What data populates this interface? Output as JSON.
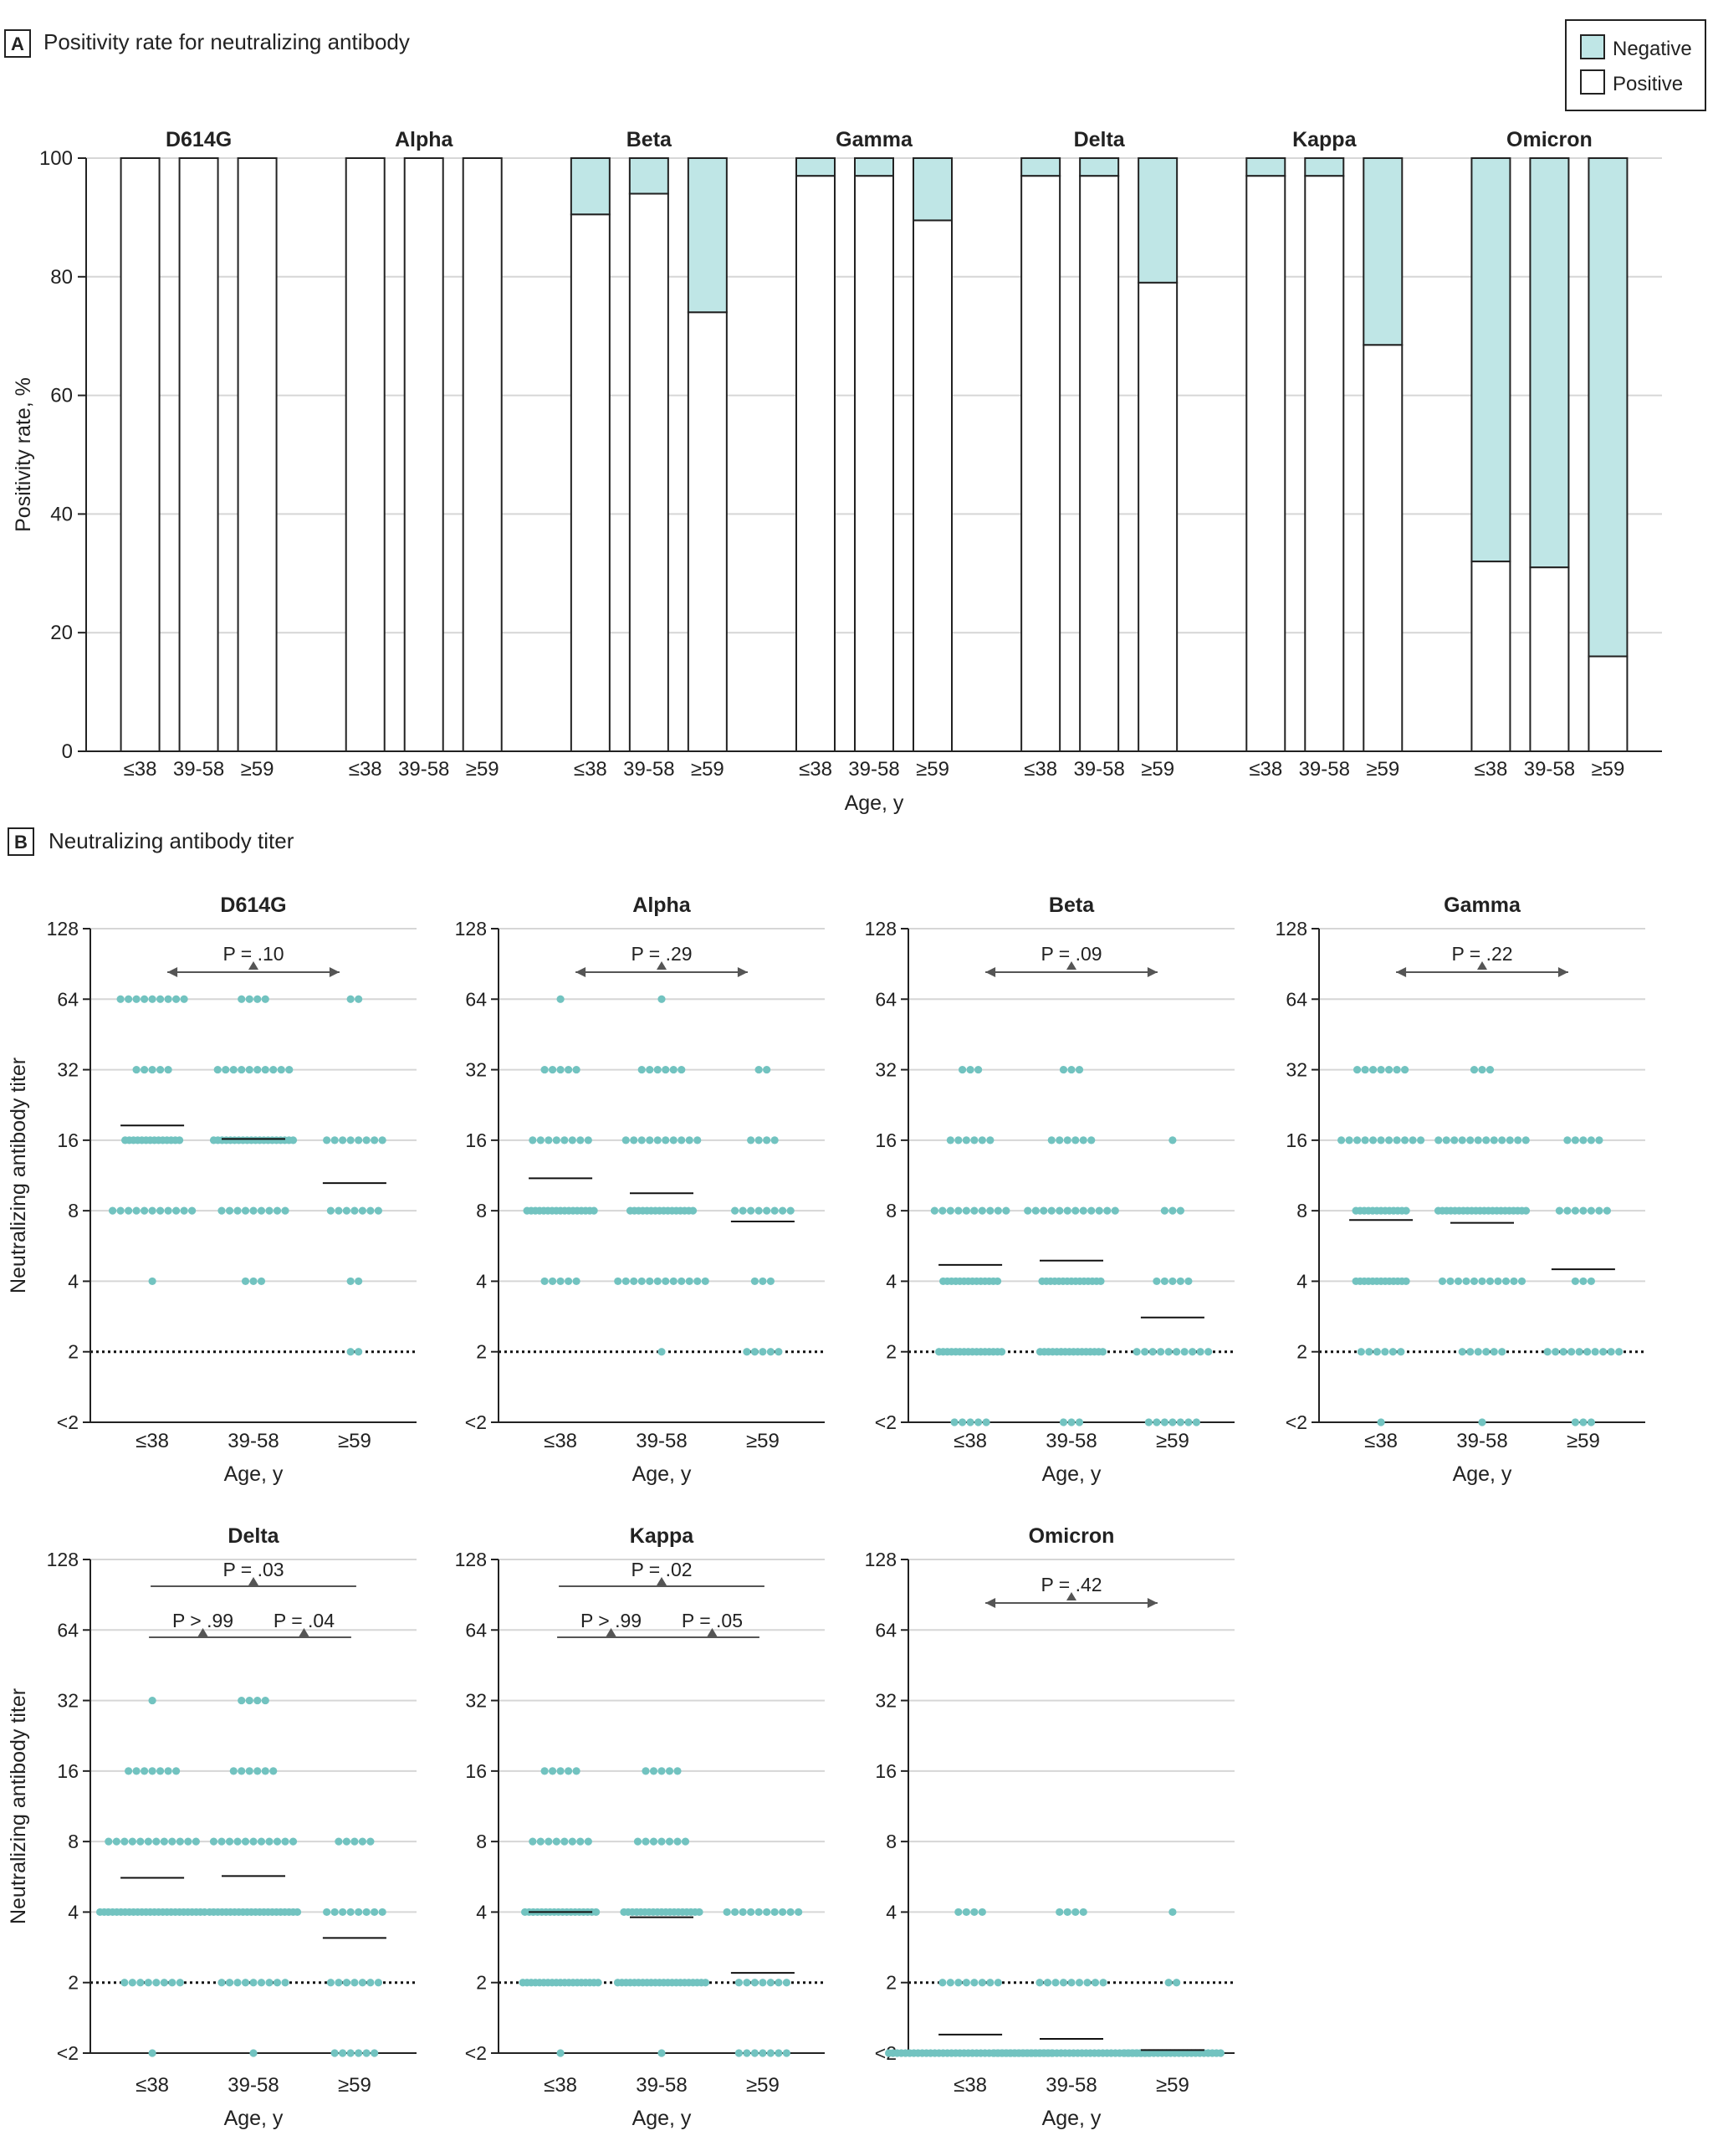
{
  "colors": {
    "negative": "#bfe6e6",
    "dot": "#72c3c0",
    "stroke": "#222222",
    "grid": "#d6d6d6",
    "text": "#222222"
  },
  "panelA": {
    "letter": "A",
    "title": "Positivity rate for neutralizing antibody",
    "legend": {
      "negative": "Negative",
      "positive": "Positive"
    }
  },
  "panelB": {
    "letter": "B",
    "title": "Neutralizing antibody titer"
  },
  "chart_data": [
    {
      "type": "bar",
      "stacked": true,
      "title": "Positivity rate for neutralizing antibody",
      "xlabel": "Age, y",
      "ylabel": "Positivity rate, %",
      "ylim": [
        0,
        100
      ],
      "yticks": [
        "0",
        "20",
        "40",
        "60",
        "80",
        "100"
      ],
      "categories": [
        "≤38",
        "39-58",
        "≥59"
      ],
      "legend": [
        "Negative",
        "Positive"
      ],
      "groups": [
        {
          "name": "D614G",
          "positive": [
            100,
            100,
            100
          ]
        },
        {
          "name": "Alpha",
          "positive": [
            100,
            100,
            100
          ]
        },
        {
          "name": "Beta",
          "positive": [
            90.5,
            94,
            74
          ]
        },
        {
          "name": "Gamma",
          "positive": [
            97,
            97,
            89.5
          ]
        },
        {
          "name": "Delta",
          "positive": [
            97,
            97,
            79
          ]
        },
        {
          "name": "Kappa",
          "positive": [
            97,
            97,
            68.5
          ]
        },
        {
          "name": "Omicron",
          "positive": [
            32,
            31,
            16
          ]
        }
      ]
    },
    {
      "type": "scatter",
      "subtype": "dot-plot",
      "title": "Neutralizing antibody titer",
      "xlabel": "Age, y",
      "ylabel": "Neutralizing antibody titer",
      "yscale": "log2",
      "yticks": [
        "<2",
        "2",
        "4",
        "8",
        "16",
        "32",
        "64",
        "128"
      ],
      "categories": [
        "≤38",
        "39-58",
        "≥59"
      ],
      "reference_line": "2",
      "panels": [
        {
          "name": "D614G",
          "counts": [
            {
              "64": 9,
              "32": 5,
              "16": 14,
              "8": 11,
              "4": 1
            },
            {
              "64": 4,
              "32": 10,
              "16": 20,
              "8": 9,
              "4": 3
            },
            {
              "64": 2,
              "16": 8,
              "8": 7,
              "4": 2,
              "2": 2
            }
          ],
          "gmt": [
            18.5,
            16.2,
            10.5
          ],
          "tests": [
            {
              "label": "P = .10",
              "type": "overall"
            }
          ]
        },
        {
          "name": "Alpha",
          "counts": [
            {
              "64": 1,
              "32": 5,
              "16": 8,
              "8": 17,
              "4": 5
            },
            {
              "64": 1,
              "32": 6,
              "16": 10,
              "8": 16,
              "4": 12,
              "2": 1
            },
            {
              "32": 2,
              "16": 4,
              "8": 8,
              "4": 3,
              "2": 5
            }
          ],
          "gmt": [
            11,
            9.5,
            7.2
          ],
          "tests": [
            {
              "label": "P = .29",
              "type": "overall"
            }
          ]
        },
        {
          "name": "Beta",
          "counts": [
            {
              "32": 3,
              "16": 6,
              "8": 10,
              "4": 14,
              "2": 16,
              "<2": 5
            },
            {
              "32": 3,
              "16": 6,
              "8": 12,
              "4": 15,
              "2": 16,
              "<2": 3
            },
            {
              "16": 1,
              "8": 3,
              "4": 5,
              "2": 10,
              "<2": 7
            }
          ],
          "gmt": [
            4.7,
            4.9,
            2.8
          ],
          "tests": [
            {
              "label": "P = .09",
              "type": "overall"
            }
          ]
        },
        {
          "name": "Gamma",
          "counts": [
            {
              "32": 7,
              "16": 11,
              "8": 13,
              "4": 13,
              "2": 6,
              "<2": 1
            },
            {
              "32": 3,
              "16": 12,
              "8": 22,
              "4": 11,
              "2": 6,
              "<2": 1
            },
            {
              "16": 5,
              "8": 7,
              "4": 3,
              "2": 10,
              "<2": 3
            }
          ],
          "gmt": [
            7.3,
            7.1,
            4.5
          ],
          "tests": [
            {
              "label": "P = .22",
              "type": "overall"
            }
          ]
        },
        {
          "name": "Delta",
          "counts": [
            {
              "32": 1,
              "16": 7,
              "8": 12,
              "4": 26,
              "2": 8,
              "<2": 1
            },
            {
              "32": 4,
              "16": 6,
              "8": 11,
              "4": 22,
              "2": 9,
              "<2": 1
            },
            {
              "8": 5,
              "4": 8,
              "2": 7,
              "<2": 6
            }
          ],
          "gmt": [
            5.6,
            5.7,
            3.1
          ],
          "tests": [
            {
              "label": "P = .03",
              "type": "overall"
            },
            {
              "label": "P > .99",
              "type": "pair12"
            },
            {
              "label": "P = .04",
              "type": "pair23"
            }
          ]
        },
        {
          "name": "Kappa",
          "counts": [
            {
              "16": 5,
              "8": 8,
              "4": 18,
              "2": 19,
              "<2": 1
            },
            {
              "16": 5,
              "8": 7,
              "4": 19,
              "2": 22,
              "<2": 1
            },
            {
              "4": 10,
              "2": 7,
              "<2": 7
            }
          ],
          "gmt": [
            4,
            3.8,
            2.2
          ],
          "tests": [
            {
              "label": "P = .02",
              "type": "overall"
            },
            {
              "label": "P > .99",
              "type": "pair12"
            },
            {
              "label": "P = .05",
              "type": "pair23"
            }
          ]
        },
        {
          "name": "Omicron",
          "counts": [
            {
              "4": 4,
              "2": 8,
              "<2": 40
            },
            {
              "4": 4,
              "2": 9,
              "<2": 38
            },
            {
              "4": 1,
              "2": 2,
              "<2": 24
            }
          ],
          "gmt": [
            1.2,
            1.15,
            1.03
          ],
          "tests": [
            {
              "label": "P = .42",
              "type": "overall"
            }
          ]
        }
      ]
    }
  ]
}
